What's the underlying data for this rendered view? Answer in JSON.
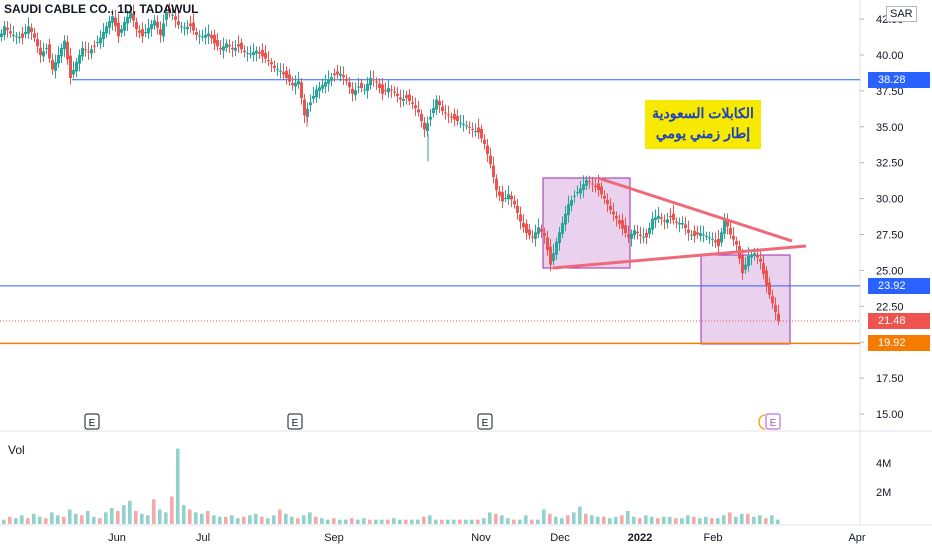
{
  "header": {
    "title": "SAUDI CABLE CO., 1D, TADAWUL",
    "currency": "SAR"
  },
  "volume_label": "Vol",
  "annotation": {
    "line1": "الكابلات السعودية",
    "line2": "إطار زمني يومي"
  },
  "colors": {
    "up": "#26a69a",
    "down": "#ef5350",
    "blue_line": "#2962ff",
    "orange_line": "#f57c00",
    "trend": "#ef6a78",
    "box_fill": "#e1bee7",
    "box_stroke": "#9c27b0"
  },
  "price_tags": [
    {
      "value": "38.28",
      "color": "#2962ff"
    },
    {
      "value": "23.92",
      "color": "#2962ff"
    },
    {
      "value": "21.48",
      "color": "#ef5350"
    },
    {
      "value": "19.92",
      "color": "#f57c00"
    }
  ],
  "chart_data": {
    "type": "line",
    "y_ticks": [
      "42.50",
      "40.00",
      "37.50",
      "35.00",
      "32.50",
      "30.00",
      "27.50",
      "25.00",
      "22.50",
      "20.00",
      "17.50",
      "15.00"
    ],
    "x_ticks": [
      "Jun",
      "Jul",
      "Sep",
      "Nov",
      "Dec",
      "2022",
      "Feb",
      "Apr"
    ],
    "vol_ticks": [
      "4M",
      "2M"
    ],
    "ylim": [
      14.0,
      43.0
    ],
    "horizontal_levels": [
      38.28,
      23.92,
      19.92
    ],
    "last_price": 21.48,
    "earnings_markers": [
      "E",
      "E",
      "E",
      "E"
    ],
    "price_path": [
      [
        0,
        41.0
      ],
      [
        6,
        42.0
      ],
      [
        12,
        41.5
      ],
      [
        18,
        41.3
      ],
      [
        24,
        41.2
      ],
      [
        30,
        42.0
      ],
      [
        36,
        41.2
      ],
      [
        42,
        40.0
      ],
      [
        48,
        40.5
      ],
      [
        54,
        39.0
      ],
      [
        60,
        40.0
      ],
      [
        66,
        41.0
      ],
      [
        72,
        38.4
      ],
      [
        78,
        39.5
      ],
      [
        84,
        40.5
      ],
      [
        90,
        40.2
      ],
      [
        96,
        40.6
      ],
      [
        102,
        41.2
      ],
      [
        108,
        42.0
      ],
      [
        114,
        42.7
      ],
      [
        120,
        41.3
      ],
      [
        126,
        42.3
      ],
      [
        132,
        43.0
      ],
      [
        138,
        41.8
      ],
      [
        144,
        41.3
      ],
      [
        150,
        41.9
      ],
      [
        156,
        42.4
      ],
      [
        162,
        41.4
      ],
      [
        168,
        43.0
      ],
      [
        174,
        42.8
      ],
      [
        180,
        42.1
      ],
      [
        186,
        41.9
      ],
      [
        192,
        42.0
      ],
      [
        198,
        41.4
      ],
      [
        204,
        41.3
      ],
      [
        210,
        41.5
      ],
      [
        216,
        40.8
      ],
      [
        222,
        40.4
      ],
      [
        228,
        40.8
      ],
      [
        234,
        40.4
      ],
      [
        240,
        40.6
      ],
      [
        246,
        40.2
      ],
      [
        252,
        40.1
      ],
      [
        258,
        40.3
      ],
      [
        264,
        39.9
      ],
      [
        270,
        39.6
      ],
      [
        276,
        39.1
      ],
      [
        282,
        38.9
      ],
      [
        288,
        38.4
      ],
      [
        294,
        37.9
      ],
      [
        300,
        38.2
      ],
      [
        306,
        35.8
      ],
      [
        312,
        36.7
      ],
      [
        318,
        37.6
      ],
      [
        324,
        37.9
      ],
      [
        330,
        38.3
      ],
      [
        336,
        38.6
      ],
      [
        342,
        38.7
      ],
      [
        348,
        38.2
      ],
      [
        354,
        37.3
      ],
      [
        360,
        37.8
      ],
      [
        366,
        37.6
      ],
      [
        372,
        38.4
      ],
      [
        378,
        38.1
      ],
      [
        384,
        37.3
      ],
      [
        390,
        37.7
      ],
      [
        396,
        37.4
      ],
      [
        402,
        36.9
      ],
      [
        408,
        37.0
      ],
      [
        414,
        36.6
      ],
      [
        420,
        36.0
      ],
      [
        426,
        34.8
      ],
      [
        432,
        35.7
      ],
      [
        438,
        36.9
      ],
      [
        444,
        36.1
      ],
      [
        450,
        35.8
      ],
      [
        456,
        35.5
      ],
      [
        462,
        35.3
      ],
      [
        468,
        35.1
      ],
      [
        474,
        34.8
      ],
      [
        480,
        34.6
      ],
      [
        486,
        33.8
      ],
      [
        492,
        32.4
      ],
      [
        498,
        30.6
      ],
      [
        504,
        29.8
      ],
      [
        510,
        30.3
      ],
      [
        516,
        29.6
      ],
      [
        522,
        28.4
      ],
      [
        528,
        27.6
      ],
      [
        534,
        27.3
      ],
      [
        540,
        28.0
      ],
      [
        546,
        27.4
      ],
      [
        552,
        25.4
      ],
      [
        558,
        27.0
      ],
      [
        564,
        28.3
      ],
      [
        570,
        29.6
      ],
      [
        576,
        30.2
      ],
      [
        582,
        30.7
      ],
      [
        588,
        31.3
      ],
      [
        594,
        31.0
      ],
      [
        600,
        30.6
      ],
      [
        606,
        30.0
      ],
      [
        612,
        29.2
      ],
      [
        618,
        28.6
      ],
      [
        624,
        27.9
      ],
      [
        630,
        27.3
      ],
      [
        636,
        27.8
      ],
      [
        642,
        27.4
      ],
      [
        648,
        27.3
      ],
      [
        654,
        28.6
      ],
      [
        660,
        28.8
      ],
      [
        666,
        28.4
      ],
      [
        672,
        28.7
      ],
      [
        678,
        28.3
      ],
      [
        684,
        28.3
      ],
      [
        690,
        27.6
      ],
      [
        696,
        27.4
      ],
      [
        702,
        27.6
      ],
      [
        708,
        27.4
      ],
      [
        714,
        27.2
      ],
      [
        720,
        26.7
      ],
      [
        726,
        28.6
      ],
      [
        732,
        27.5
      ],
      [
        738,
        26.8
      ],
      [
        744,
        24.8
      ],
      [
        750,
        26.0
      ],
      [
        756,
        26.2
      ],
      [
        762,
        25.6
      ],
      [
        768,
        23.9
      ],
      [
        774,
        22.7
      ],
      [
        780,
        21.48
      ]
    ],
    "volumes": [
      0.3,
      0.5,
      0.4,
      0.6,
      0.4,
      0.7,
      0.5,
      0.4,
      0.8,
      0.6,
      0.5,
      1.0,
      0.7,
      0.6,
      0.9,
      0.5,
      0.4,
      0.8,
      1.1,
      0.9,
      1.3,
      1.6,
      0.9,
      0.7,
      0.6,
      1.7,
      1.0,
      0.8,
      1.9,
      5.2,
      1.3,
      1.0,
      0.8,
      0.7,
      0.9,
      0.6,
      0.5,
      0.5,
      0.6,
      0.4,
      0.5,
      0.6,
      0.7,
      0.5,
      0.4,
      0.6,
      1.0,
      0.7,
      0.5,
      0.4,
      0.6,
      0.8,
      0.5,
      0.4,
      0.3,
      0.4,
      0.3,
      0.3,
      0.4,
      0.3,
      0.4,
      0.3,
      0.3,
      0.3,
      0.3,
      0.4,
      0.3,
      0.3,
      0.3,
      0.3,
      0.5,
      0.6,
      0.3,
      0.3,
      0.3,
      0.3,
      0.3,
      0.3,
      0.3,
      0.3,
      0.4,
      0.8,
      0.7,
      0.6,
      0.4,
      0.3,
      0.3,
      0.6,
      0.3,
      0.3,
      1.0,
      0.7,
      0.5,
      0.4,
      0.6,
      0.8,
      1.2,
      0.7,
      0.6,
      0.5,
      0.5,
      0.4,
      0.5,
      0.6,
      0.9,
      0.5,
      0.4,
      0.6,
      0.5,
      0.4,
      0.5,
      0.5,
      0.4,
      0.4,
      0.6,
      0.5,
      0.4,
      0.5,
      0.4,
      0.4,
      0.6,
      0.8,
      0.5,
      0.7,
      0.7,
      0.5,
      0.6,
      0.4,
      0.6,
      0.3
    ]
  }
}
